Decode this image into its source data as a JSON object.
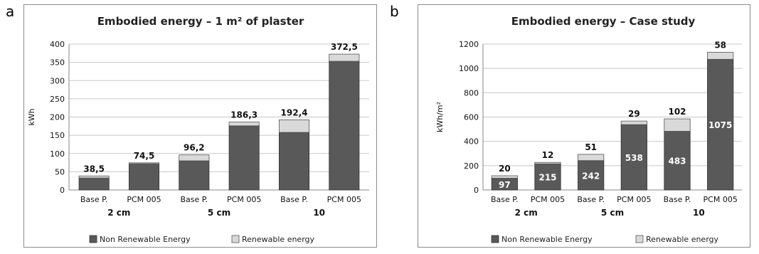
{
  "panel_labels": {
    "a": "a",
    "b": "b"
  },
  "colors": {
    "non_renewable": "#595959",
    "renewable": "#d9d9d9",
    "grid": "#c8c8c8",
    "axis": "#888888"
  },
  "chart_data": [
    {
      "type": "bar",
      "stacked": true,
      "title": "Embodied energy – 1 m² of plaster",
      "ylabel": "kWh",
      "ylim": [
        0,
        400
      ],
      "yticks": [
        0,
        50,
        100,
        150,
        200,
        250,
        300,
        350,
        400
      ],
      "categories": [
        "Base P.",
        "PCM 005",
        "Base P.",
        "PCM 005",
        "Base P.",
        "PCM 005"
      ],
      "groups": [
        "2 cm",
        "5 cm",
        "10"
      ],
      "series": [
        {
          "name": "Non Renewable Energy",
          "values": [
            33,
            72,
            80,
            176,
            158,
            353
          ]
        },
        {
          "name": "Renewable energy",
          "values": [
            5.5,
            2.5,
            16.2,
            10.3,
            34.4,
            19.5
          ]
        }
      ],
      "total_labels": [
        "38,5",
        "74,5",
        "96,2",
        "186,3",
        "192,4",
        "372,5"
      ],
      "grid": true,
      "legend_position": "bottom"
    },
    {
      "type": "bar",
      "stacked": true,
      "title": "Embodied energy – Case study",
      "ylabel": "kWh/m²",
      "ylim": [
        0,
        1200
      ],
      "yticks": [
        0,
        200,
        400,
        600,
        800,
        1000,
        1200
      ],
      "categories": [
        "Base P.",
        "PCM 005",
        "Base P.",
        "PCM 005",
        "Base P.",
        "PCM 005"
      ],
      "groups": [
        "2 cm",
        "5 cm",
        "10"
      ],
      "series": [
        {
          "name": "Non Renewable Energy",
          "values": [
            97,
            215,
            242,
            538,
            483,
            1075
          ]
        },
        {
          "name": "Renewable energy",
          "values": [
            20,
            12,
            51,
            29,
            102,
            58
          ]
        }
      ],
      "segment_labels": [
        "97",
        "215",
        "242",
        "538",
        "483",
        "1075"
      ],
      "top_labels": [
        "20",
        "12",
        "51",
        "29",
        "102",
        "58"
      ],
      "grid": true,
      "legend_position": "bottom"
    }
  ]
}
